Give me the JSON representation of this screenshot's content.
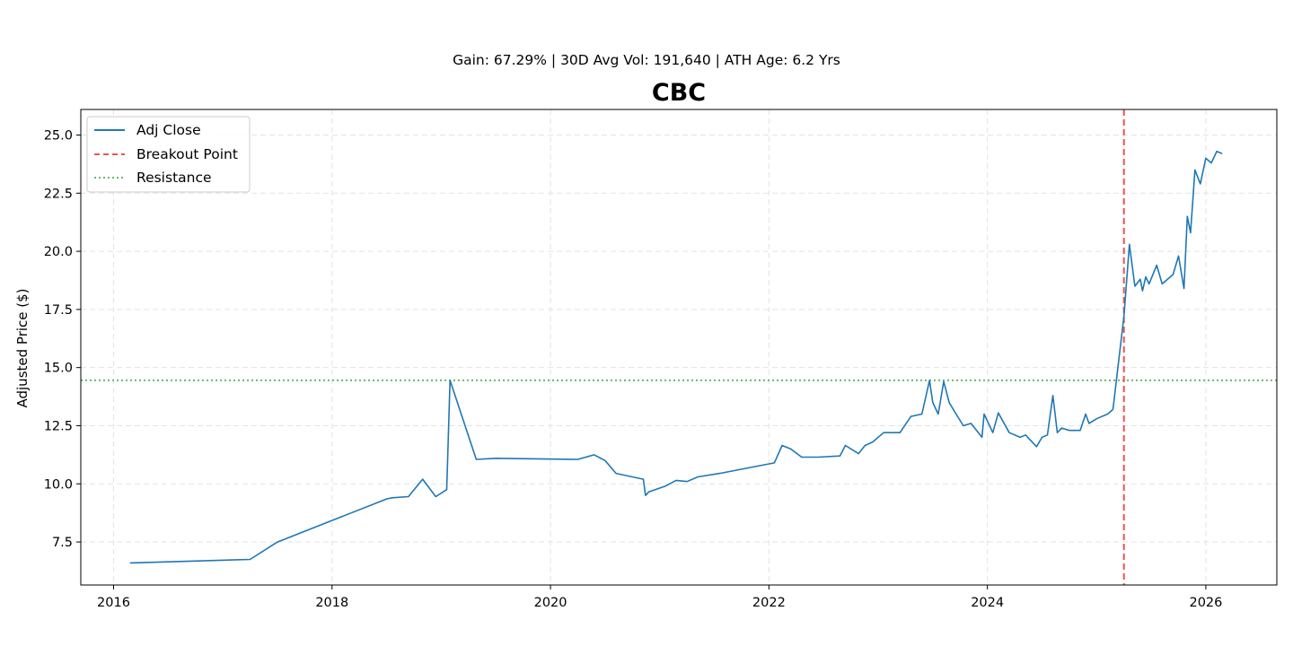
{
  "chart_data": {
    "type": "line",
    "title": "CBC",
    "subtitle": "Gain: 67.29% | 30D Avg Vol: 191,640 | ATH Age: 6.2 Yrs",
    "xlabel": "",
    "ylabel": "Adjusted Price ($)",
    "xlim": [
      2015.7,
      2026.65
    ],
    "ylim": [
      5.65,
      26.1
    ],
    "x_ticks": [
      2016,
      2018,
      2020,
      2022,
      2024,
      2026
    ],
    "x_tick_labels": [
      "2016",
      "2018",
      "2020",
      "2022",
      "2024",
      "2026"
    ],
    "y_ticks": [
      7.5,
      10.0,
      12.5,
      15.0,
      17.5,
      20.0,
      22.5,
      25.0
    ],
    "y_tick_labels": [
      "7.5",
      "10.0",
      "12.5",
      "15.0",
      "17.5",
      "20.0",
      "22.5",
      "25.0"
    ],
    "grid": true,
    "legend_position": "top-left",
    "legend": [
      "Adj Close",
      "Breakout Point",
      "Resistance"
    ],
    "colors": {
      "series": "#1f77b4",
      "breakout": "#ef5350",
      "resistance": "#66bb6a"
    },
    "series": [
      {
        "name": "Adj Close",
        "x": [
          2016.15,
          2017.25,
          2017.5,
          2018.5,
          2018.55,
          2018.7,
          2018.83,
          2018.95,
          2019.05,
          2019.08,
          2019.32,
          2019.5,
          2020.25,
          2020.4,
          2020.5,
          2020.6,
          2020.85,
          2020.87,
          2020.9,
          2021.05,
          2021.15,
          2021.25,
          2021.35,
          2021.55,
          2022.05,
          2022.12,
          2022.2,
          2022.3,
          2022.45,
          2022.65,
          2022.7,
          2022.82,
          2022.88,
          2022.95,
          2023.05,
          2023.1,
          2023.2,
          2023.3,
          2023.4,
          2023.47,
          2023.5,
          2023.55,
          2023.6,
          2023.65,
          2023.7,
          2023.78,
          2023.85,
          2023.95,
          2023.97,
          2024.05,
          2024.1,
          2024.2,
          2024.3,
          2024.35,
          2024.45,
          2024.5,
          2024.55,
          2024.6,
          2024.64,
          2024.68,
          2024.75,
          2024.85,
          2024.9,
          2024.93,
          2025.0,
          2025.1,
          2025.15,
          2025.2,
          2025.25,
          2025.3,
          2025.35,
          2025.4,
          2025.42,
          2025.45,
          2025.48,
          2025.55,
          2025.6,
          2025.7,
          2025.75,
          2025.8,
          2025.83,
          2025.86,
          2025.9,
          2025.95,
          2026.0,
          2026.05,
          2026.1,
          2026.15
        ],
        "values": [
          6.6,
          6.75,
          7.5,
          9.35,
          9.4,
          9.45,
          10.2,
          9.45,
          9.75,
          14.45,
          11.05,
          11.1,
          11.05,
          11.25,
          11.0,
          10.45,
          10.2,
          9.5,
          9.65,
          9.9,
          10.15,
          10.1,
          10.3,
          10.45,
          10.9,
          11.65,
          11.5,
          11.15,
          11.15,
          11.2,
          11.65,
          11.3,
          11.65,
          11.8,
          12.2,
          12.2,
          12.2,
          12.9,
          13.0,
          14.45,
          13.5,
          13.0,
          14.4,
          13.5,
          13.1,
          12.5,
          12.6,
          12.0,
          13.0,
          12.2,
          13.05,
          12.2,
          12.0,
          12.1,
          11.6,
          12.0,
          12.1,
          13.8,
          12.2,
          12.4,
          12.3,
          12.3,
          13.0,
          12.6,
          12.8,
          13.0,
          13.2,
          15.2,
          17.2,
          20.3,
          18.5,
          18.8,
          18.3,
          18.9,
          18.6,
          19.4,
          18.6,
          19.0,
          19.8,
          18.4,
          21.5,
          20.8,
          23.5,
          22.9,
          24.0,
          23.8,
          24.3,
          24.2
        ]
      }
    ],
    "breakout_x": 2025.25,
    "resistance_y": 14.45
  }
}
